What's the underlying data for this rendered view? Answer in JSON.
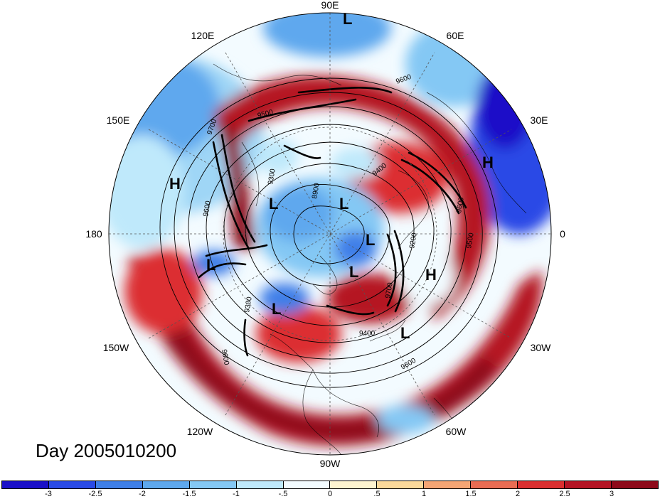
{
  "map": {
    "longitude_labels": [
      "90E",
      "60E",
      "30E",
      "0",
      "30W",
      "60W",
      "90W",
      "120W",
      "150W",
      "180",
      "150E",
      "120E"
    ],
    "contour_labels": [
      "9600",
      "9500",
      "9700",
      "9600",
      "8900",
      "9400",
      "9500",
      "9300",
      "9600",
      "9400",
      "9600",
      "9200",
      "9700",
      "9300",
      "9600"
    ],
    "pressure_systems": [
      "L",
      "H",
      "L",
      "L",
      "L",
      "L",
      "L",
      "L",
      "H",
      "L",
      "L",
      "H"
    ]
  },
  "title": {
    "text": "Day 2005010200"
  },
  "colorbar": {
    "colors": [
      "#1a10c8",
      "#2a4ae6",
      "#3f7fe8",
      "#5ea8ee",
      "#84c8f4",
      "#bfe9fb",
      "#f2fbff",
      "#fdf4d0",
      "#fbd99b",
      "#f5a574",
      "#ea6c53",
      "#dc2f30",
      "#b51424",
      "#8e0a1a"
    ],
    "tick_labels": [
      "-3",
      "-2.5",
      "-2",
      "-1.5",
      "-1",
      "-.5",
      "0",
      ".5",
      "1",
      "1.5",
      "2",
      "2.5",
      "3"
    ]
  }
}
